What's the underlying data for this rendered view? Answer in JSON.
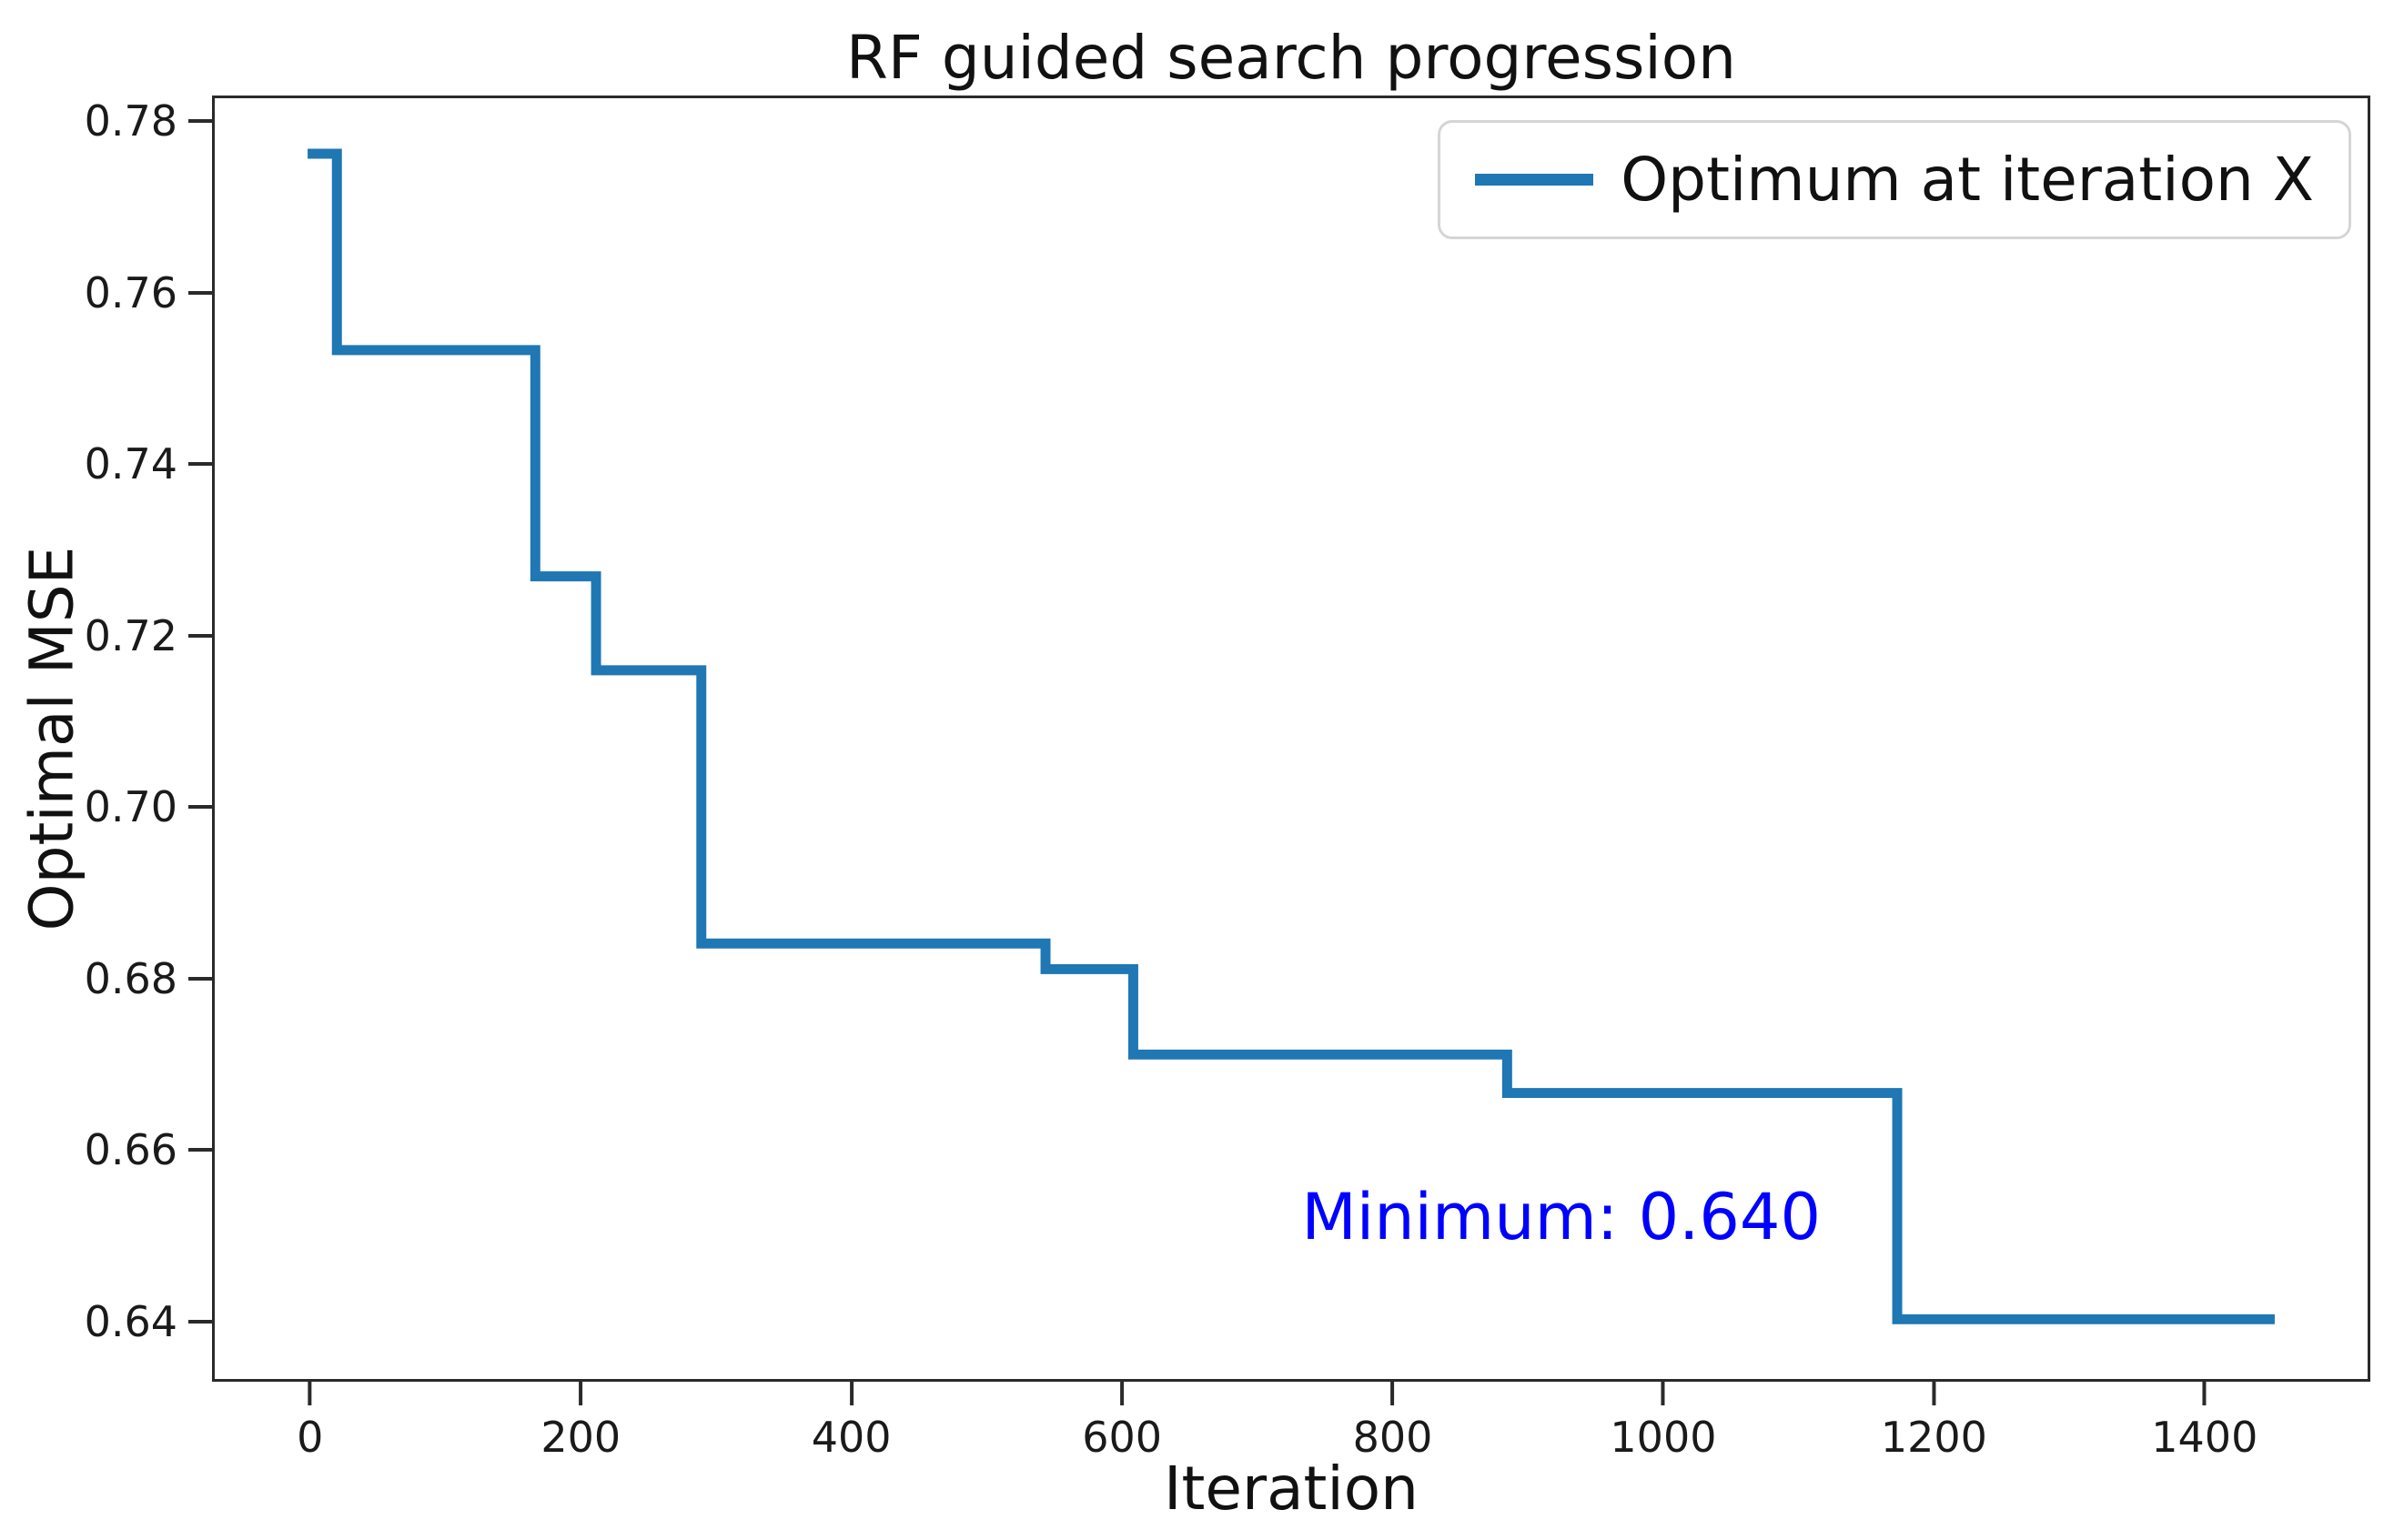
{
  "chart_data": {
    "type": "line",
    "subtype": "step-post",
    "title": "RF guided search progression",
    "xlabel": "Iteration",
    "ylabel": "Optimal MSE",
    "xlim": [
      -72.5,
      1522.5
    ],
    "ylim": [
      0.633,
      0.783
    ],
    "x_ticks": [
      0,
      200,
      400,
      600,
      800,
      1000,
      1200,
      1400
    ],
    "y_ticks": [
      0.78,
      0.76,
      0.74,
      0.72,
      0.7,
      0.68,
      0.66,
      0.64
    ],
    "grid": false,
    "legend_position": "upper right",
    "legend": [
      {
        "label": "Optimum at iteration X",
        "color": "#1f77b4"
      }
    ],
    "series": [
      {
        "name": "Optimum at iteration X",
        "color": "#1f77b4",
        "line_width": 11,
        "points": [
          [
            0,
            0.7765
          ],
          [
            18,
            0.7535
          ],
          [
            165,
            0.727
          ],
          [
            210,
            0.716
          ],
          [
            288,
            0.684
          ],
          [
            543,
            0.681
          ],
          [
            608,
            0.671
          ],
          [
            885,
            0.6665
          ],
          [
            1174,
            0.64
          ]
        ],
        "x_end": 1450
      }
    ],
    "annotation": {
      "text": "Minimum: 0.640",
      "x": 925,
      "y": 0.652,
      "color": "#0000ff"
    }
  },
  "colors": {
    "line": "#1f77b4",
    "annotation": "#0000ff",
    "spine": "#2a2a2a",
    "text": "#111111"
  }
}
